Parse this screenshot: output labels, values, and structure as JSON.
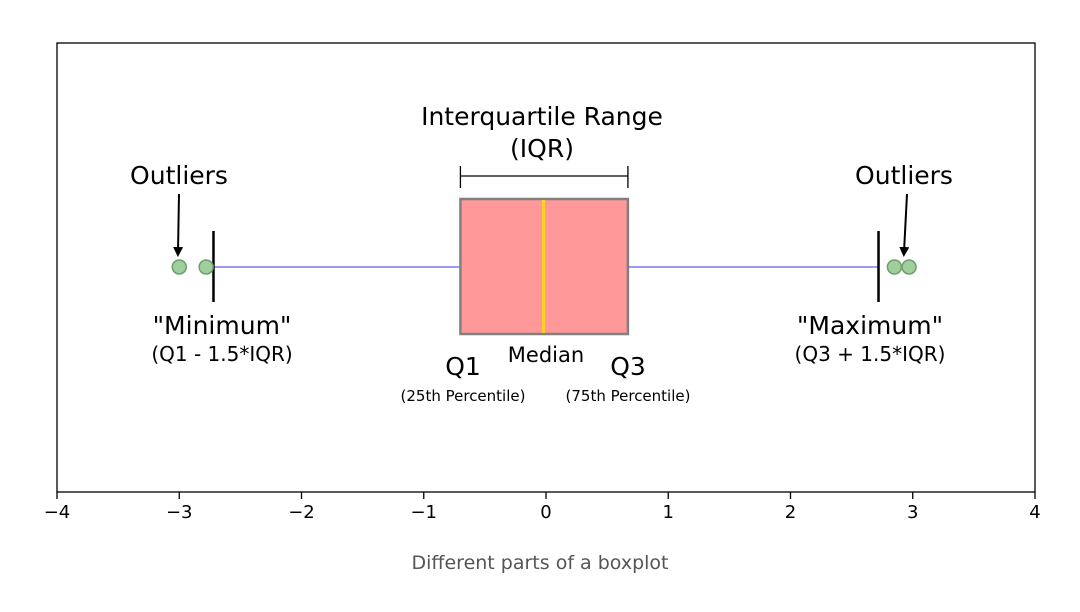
{
  "chart_data": {
    "type": "box",
    "xlim": [
      -4,
      4
    ],
    "xticks": [
      -4,
      -3,
      -2,
      -1,
      0,
      1,
      2,
      3,
      4
    ],
    "xtick_labels": [
      "−4",
      "−3",
      "−2",
      "−1",
      "0",
      "1",
      "2",
      "3",
      "4"
    ],
    "grid": false,
    "box": {
      "q1": -0.7,
      "median": -0.02,
      "q3": 0.67,
      "whisker_low": -2.72,
      "whisker_high": 2.72
    },
    "outliers": [
      -3.0,
      -2.78,
      2.85,
      2.97
    ],
    "colors": {
      "box_fill": "#ff9999",
      "box_edge": "#808080",
      "median": "#ffd21f",
      "whisker": "#9b9bef",
      "outlier_fill": "#9fcf9c",
      "outlier_edge": "#6f9e6c",
      "frame": "#000000"
    },
    "annotations": {
      "iqr_title": "Interquartile Range",
      "iqr_abbr": "(IQR)",
      "outliers_left": "Outliers",
      "outliers_right": "Outliers",
      "minimum": "\"Minimum\"",
      "minimum_formula": "(Q1 - 1.5*IQR)",
      "maximum": "\"Maximum\"",
      "maximum_formula": "(Q3 + 1.5*IQR)",
      "q1": "Q1",
      "q1_sub": "(25th Percentile)",
      "median": "Median",
      "q3": "Q3",
      "q3_sub": "(75th Percentile)"
    }
  },
  "caption": "Different parts of a boxplot"
}
